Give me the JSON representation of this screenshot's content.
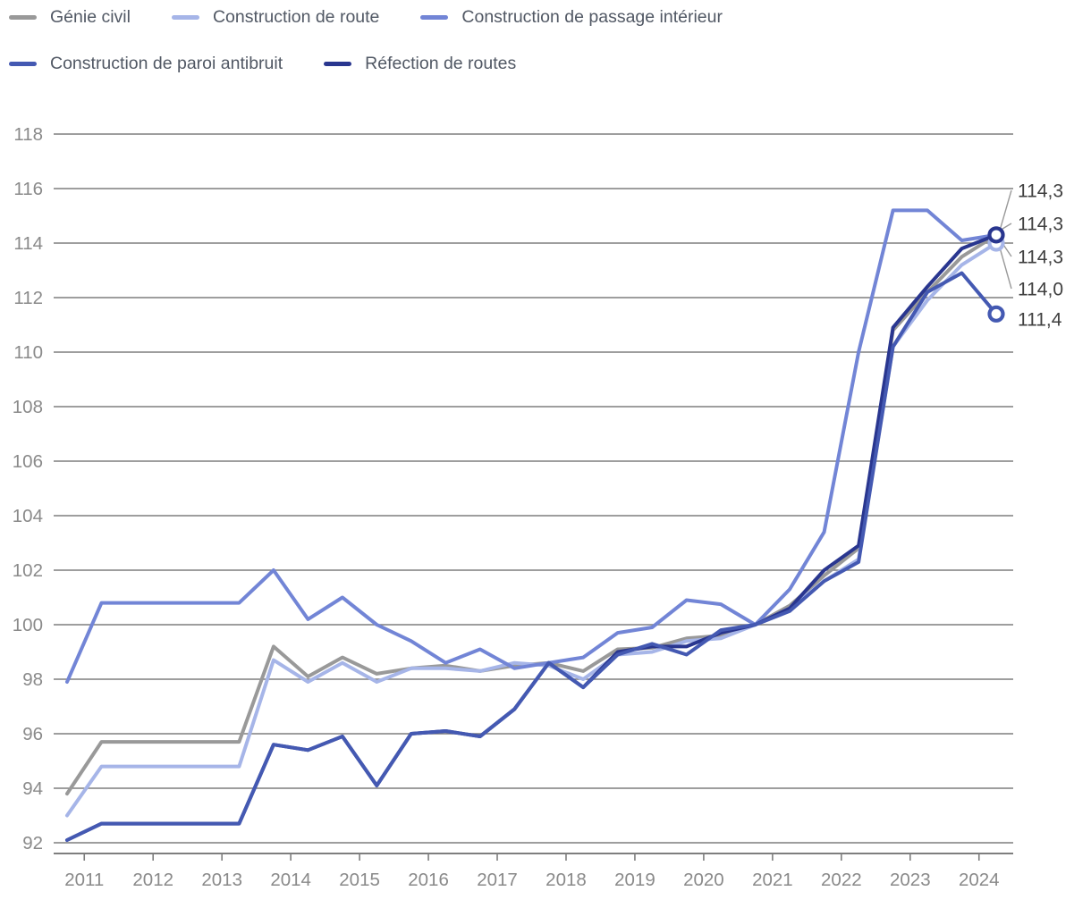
{
  "chart_data": {
    "type": "line",
    "title": "",
    "xlabel": "",
    "ylabel": "",
    "grid": true,
    "legend_position": "top",
    "ylim": [
      92,
      118
    ],
    "y_tick_values": [
      92,
      94,
      96,
      98,
      100,
      102,
      104,
      106,
      108,
      110,
      112,
      114,
      116,
      118
    ],
    "y_tick_labels": [
      "92",
      "94",
      "96",
      "98",
      "100",
      "102",
      "104",
      "106",
      "108",
      "110",
      "112",
      "114",
      "116",
      "118"
    ],
    "x_tick_years": [
      2011,
      2012,
      2013,
      2014,
      2015,
      2016,
      2017,
      2018,
      2019,
      2020,
      2021,
      2022,
      2023,
      2024
    ],
    "x_tick_labels": [
      "2011",
      "2012",
      "2013",
      "2014",
      "2015",
      "2016",
      "2017",
      "2018",
      "2019",
      "2020",
      "2021",
      "2022",
      "2023",
      "2024"
    ],
    "x_points": [
      2010.75,
      2011.25,
      2011.75,
      2012.25,
      2012.75,
      2013.25,
      2013.75,
      2014.25,
      2014.75,
      2015.25,
      2015.75,
      2016.25,
      2016.75,
      2017.25,
      2017.75,
      2018.25,
      2018.75,
      2019.25,
      2019.75,
      2020.25,
      2020.75,
      2021.25,
      2021.75,
      2022.25,
      2022.75,
      2023.25,
      2023.75,
      2024.25
    ],
    "series": [
      {
        "name": "Génie civil",
        "color": "#999999",
        "end_label": "114,3",
        "end_label_slot": 0,
        "end_marker": false,
        "values": [
          93.8,
          95.7,
          95.7,
          95.7,
          95.7,
          95.7,
          99.2,
          98.1,
          98.8,
          98.2,
          98.4,
          98.5,
          98.3,
          98.5,
          98.6,
          98.3,
          99.1,
          99.15,
          99.5,
          99.6,
          100.0,
          100.7,
          101.8,
          102.8,
          110.8,
          112.2,
          113.5,
          114.3
        ]
      },
      {
        "name": "Construction de route",
        "color": "#A6B5E8",
        "end_label": "114,0",
        "end_label_slot": 3,
        "end_marker": true,
        "values": [
          93.0,
          94.8,
          94.8,
          94.8,
          94.8,
          94.8,
          98.7,
          97.9,
          98.6,
          97.9,
          98.4,
          98.4,
          98.3,
          98.6,
          98.5,
          98.0,
          98.9,
          99.0,
          99.4,
          99.5,
          100.0,
          100.6,
          101.6,
          102.4,
          110.2,
          111.9,
          113.2,
          114.0
        ]
      },
      {
        "name": "Construction de passage intérieur",
        "color": "#7285D6",
        "end_label": "114,3",
        "end_label_slot": 2,
        "end_marker": false,
        "values": [
          97.9,
          100.8,
          100.8,
          100.8,
          100.8,
          100.8,
          102.0,
          100.2,
          101.0,
          100.0,
          99.4,
          98.6,
          99.1,
          98.4,
          98.6,
          98.8,
          99.7,
          99.9,
          100.9,
          100.75,
          100.0,
          101.3,
          103.4,
          110.0,
          115.2,
          115.2,
          114.1,
          114.3
        ]
      },
      {
        "name": "Construction de paroi antibruit",
        "color": "#4459B2",
        "end_label": "111,4",
        "end_label_slot": 4,
        "end_marker": true,
        "values": [
          92.1,
          92.7,
          92.7,
          92.7,
          92.7,
          92.7,
          95.6,
          95.4,
          95.9,
          94.1,
          96.0,
          96.1,
          95.9,
          96.9,
          98.6,
          97.7,
          98.9,
          99.3,
          98.9,
          99.8,
          100.0,
          100.5,
          101.6,
          102.3,
          110.2,
          112.2,
          112.9,
          111.4
        ]
      },
      {
        "name": "Réfection de routes",
        "color": "#29368F",
        "end_label": "114,3",
        "end_label_slot": 1,
        "end_marker": true,
        "values": [
          92.1,
          92.7,
          92.7,
          92.7,
          92.7,
          92.7,
          95.6,
          95.4,
          95.9,
          94.1,
          96.0,
          96.1,
          95.9,
          96.9,
          98.6,
          97.7,
          99.0,
          99.2,
          99.2,
          99.7,
          100.0,
          100.6,
          102.0,
          102.9,
          110.9,
          112.4,
          113.8,
          114.3
        ]
      }
    ],
    "legend_rows": [
      [
        0,
        1,
        2
      ],
      [
        3,
        4
      ]
    ],
    "draw_order": [
      0,
      1,
      2,
      4,
      3
    ],
    "end_label_color": "#3f3f3f",
    "leader_line_color": "#9a9a9a",
    "axis_color": "#7e7e7e",
    "tick_label_color": "#8a8a8a"
  }
}
